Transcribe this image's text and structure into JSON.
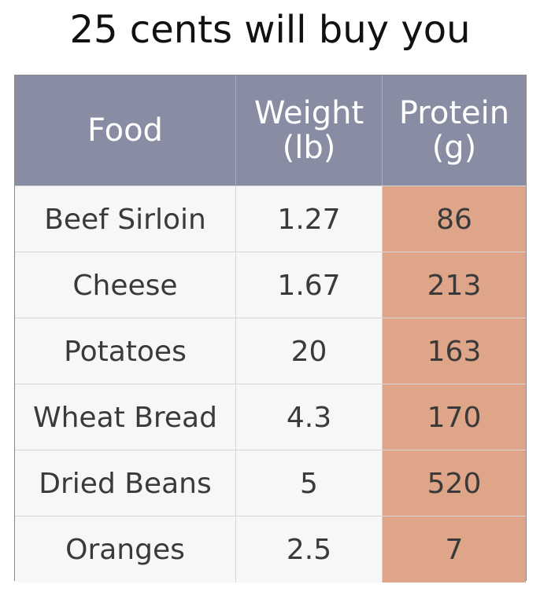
{
  "title": "25 cents will buy you",
  "colors": {
    "header_bg": "#898da3",
    "protein_bg": "#dea588",
    "row_bg": "#f7f7f7"
  },
  "table": {
    "headers": {
      "food": "Food",
      "weight_line1": "Weight",
      "weight_line2": "(lb)",
      "protein_line1": "Protein",
      "protein_line2": "(g)"
    },
    "rows": [
      {
        "food": "Beef Sirloin",
        "weight": "1.27",
        "protein": "86"
      },
      {
        "food": "Cheese",
        "weight": "1.67",
        "protein": "213"
      },
      {
        "food": "Potatoes",
        "weight": "20",
        "protein": "163"
      },
      {
        "food": "Wheat Bread",
        "weight": "4.3",
        "protein": "170"
      },
      {
        "food": "Dried Beans",
        "weight": "5",
        "protein": "520"
      },
      {
        "food": "Oranges",
        "weight": "2.5",
        "protein": "7"
      }
    ]
  }
}
